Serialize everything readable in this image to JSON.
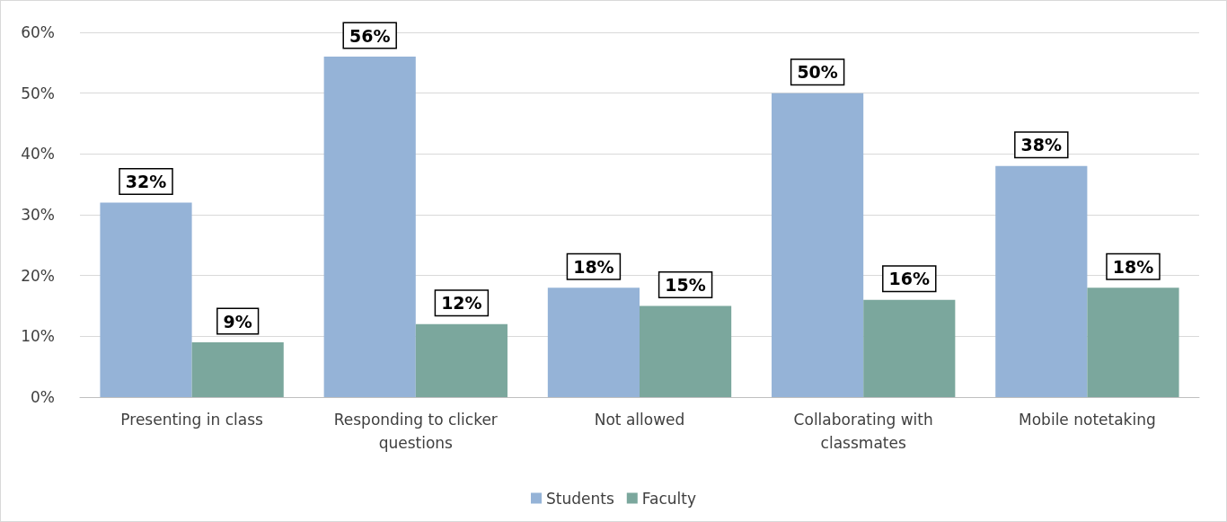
{
  "chart_data": {
    "type": "bar",
    "categories": [
      "Presenting in class",
      "Responding to clicker\nquestions",
      "Not allowed",
      "Collaborating with\nclassmates",
      "Mobile notetaking"
    ],
    "series": [
      {
        "name": "Students",
        "color": "#95b3d7",
        "values": [
          32,
          56,
          18,
          50,
          38
        ],
        "value_labels": [
          "32%",
          "56%",
          "18%",
          "50%",
          "38%"
        ]
      },
      {
        "name": "Faculty",
        "color": "#7ba79d",
        "values": [
          9,
          12,
          15,
          16,
          18
        ],
        "value_labels": [
          "9%",
          "12%",
          "15%",
          "16%",
          "18%"
        ]
      }
    ],
    "ylim": [
      0,
      60
    ],
    "yticks": [
      {
        "value": 0,
        "label": "0%"
      },
      {
        "value": 10,
        "label": "10%"
      },
      {
        "value": 20,
        "label": "20%"
      },
      {
        "value": 30,
        "label": "30%"
      },
      {
        "value": 40,
        "label": "40%"
      },
      {
        "value": 50,
        "label": "50%"
      },
      {
        "value": 60,
        "label": "60%"
      }
    ],
    "grid": "y",
    "legend": "bottom"
  }
}
